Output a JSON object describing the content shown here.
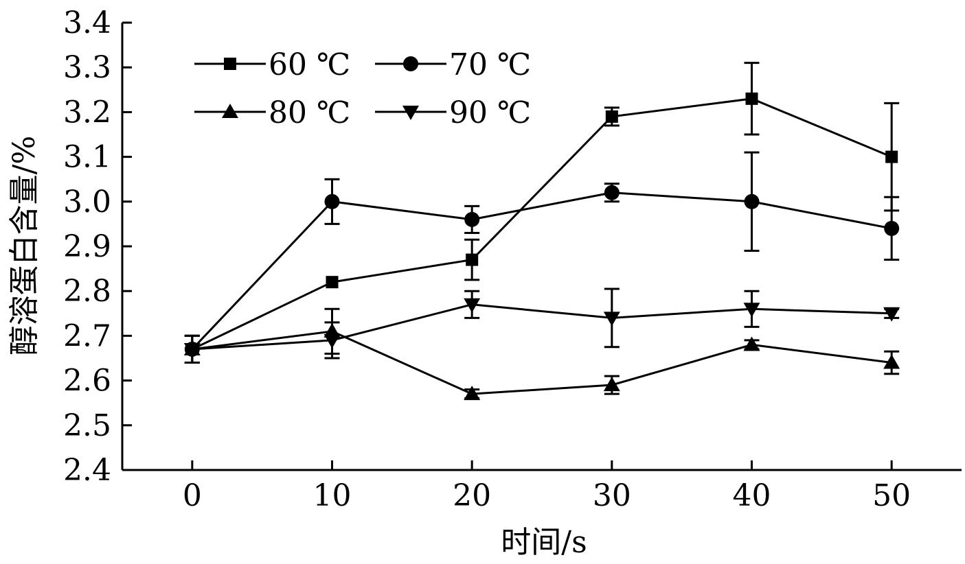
{
  "chart_data": {
    "type": "line",
    "xlabel": "时间/s",
    "ylabel": "醇溶蛋白含量/%",
    "x": [
      0,
      10,
      20,
      30,
      40,
      50
    ],
    "xlim": [
      -5,
      55
    ],
    "ylim": [
      2.4,
      3.4
    ],
    "x_ticks": [
      "0",
      "10",
      "20",
      "30",
      "40",
      "50"
    ],
    "y_ticks": [
      "2.4",
      "2.5",
      "2.6",
      "2.7",
      "2.8",
      "2.9",
      "3.0",
      "3.1",
      "3.2",
      "3.3",
      "3.4"
    ],
    "grid": false,
    "legend_position": "top-left",
    "series": [
      {
        "name": "60 ℃",
        "marker": "square",
        "values": [
          2.67,
          2.82,
          2.87,
          3.19,
          3.23,
          3.1
        ],
        "errors": [
          0.03,
          0.0,
          0.045,
          0.02,
          0.08,
          0.12
        ]
      },
      {
        "name": "70 ℃",
        "marker": "circle",
        "values": [
          2.67,
          3.0,
          2.96,
          3.02,
          3.0,
          2.94
        ],
        "errors": [
          0.03,
          0.05,
          0.03,
          0.02,
          0.11,
          0.07
        ]
      },
      {
        "name": "80 ℃",
        "marker": "triangle-up",
        "values": [
          2.67,
          2.71,
          2.57,
          2.59,
          2.68,
          2.64
        ],
        "errors": [
          0.03,
          0.05,
          0.01,
          0.02,
          0.01,
          0.025
        ]
      },
      {
        "name": "90 ℃",
        "marker": "triangle-down",
        "values": [
          2.67,
          2.69,
          2.77,
          2.74,
          2.76,
          2.75
        ],
        "errors": [
          0.03,
          0.04,
          0.03,
          0.065,
          0.04,
          0.01
        ]
      }
    ]
  }
}
